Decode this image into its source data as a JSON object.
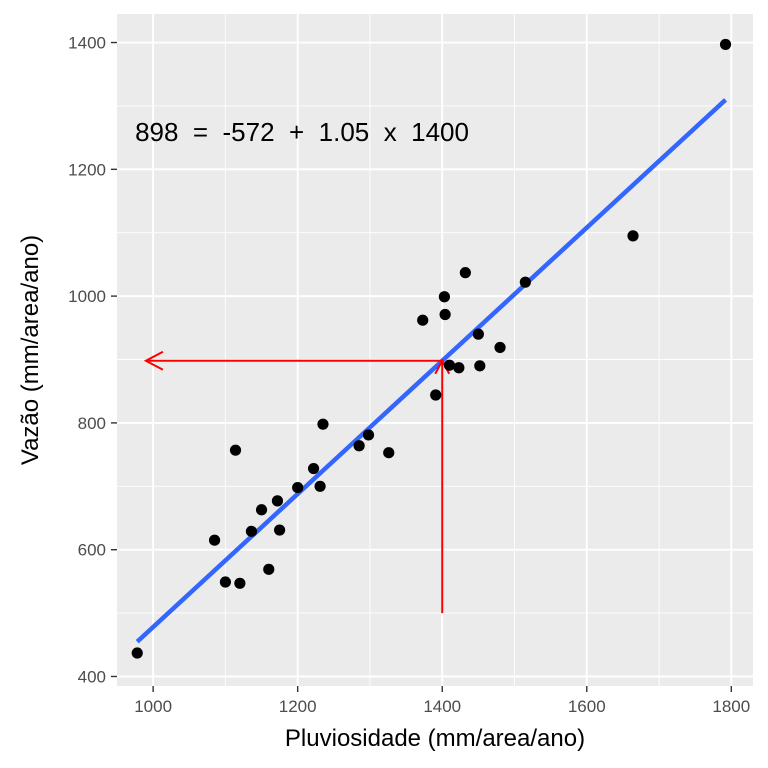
{
  "chart_data": {
    "type": "scatter",
    "xlabel": "Pluviosidade (mm/area/ano)",
    "ylabel": "Vazão (mm/area/ano)",
    "xlim": [
      950,
      1830
    ],
    "ylim": [
      385,
      1445
    ],
    "x_ticks": [
      1000,
      1200,
      1400,
      1600,
      1800
    ],
    "y_ticks": [
      400,
      600,
      800,
      1000,
      1200,
      1400
    ],
    "grid": true,
    "points": [
      {
        "x": 978,
        "y": 437
      },
      {
        "x": 1085,
        "y": 615
      },
      {
        "x": 1100,
        "y": 549
      },
      {
        "x": 1114,
        "y": 757
      },
      {
        "x": 1120,
        "y": 547
      },
      {
        "x": 1136,
        "y": 629
      },
      {
        "x": 1150,
        "y": 663
      },
      {
        "x": 1160,
        "y": 569
      },
      {
        "x": 1172,
        "y": 677
      },
      {
        "x": 1175,
        "y": 631
      },
      {
        "x": 1200,
        "y": 698
      },
      {
        "x": 1222,
        "y": 728
      },
      {
        "x": 1231,
        "y": 700
      },
      {
        "x": 1235,
        "y": 798
      },
      {
        "x": 1285,
        "y": 764
      },
      {
        "x": 1298,
        "y": 781
      },
      {
        "x": 1326,
        "y": 753
      },
      {
        "x": 1373,
        "y": 962
      },
      {
        "x": 1391,
        "y": 844
      },
      {
        "x": 1403,
        "y": 999
      },
      {
        "x": 1404,
        "y": 971
      },
      {
        "x": 1410,
        "y": 891
      },
      {
        "x": 1423,
        "y": 887
      },
      {
        "x": 1432,
        "y": 1037
      },
      {
        "x": 1450,
        "y": 940
      },
      {
        "x": 1452,
        "y": 890
      },
      {
        "x": 1480,
        "y": 919
      },
      {
        "x": 1515,
        "y": 1022
      },
      {
        "x": 1664,
        "y": 1095
      },
      {
        "x": 1792,
        "y": 1397
      }
    ],
    "regression": {
      "intercept": -572,
      "slope": 1.05,
      "x_range": [
        978,
        1792
      ],
      "color": "#3366ff"
    },
    "arrow_path": {
      "x": 1400,
      "y": 898,
      "y_start": 500,
      "x_end": 990,
      "color": "#ff0000"
    },
    "annotation": {
      "text": "898  =  -572  +  1.05  x  1400",
      "x": 975,
      "y": 1245
    }
  }
}
